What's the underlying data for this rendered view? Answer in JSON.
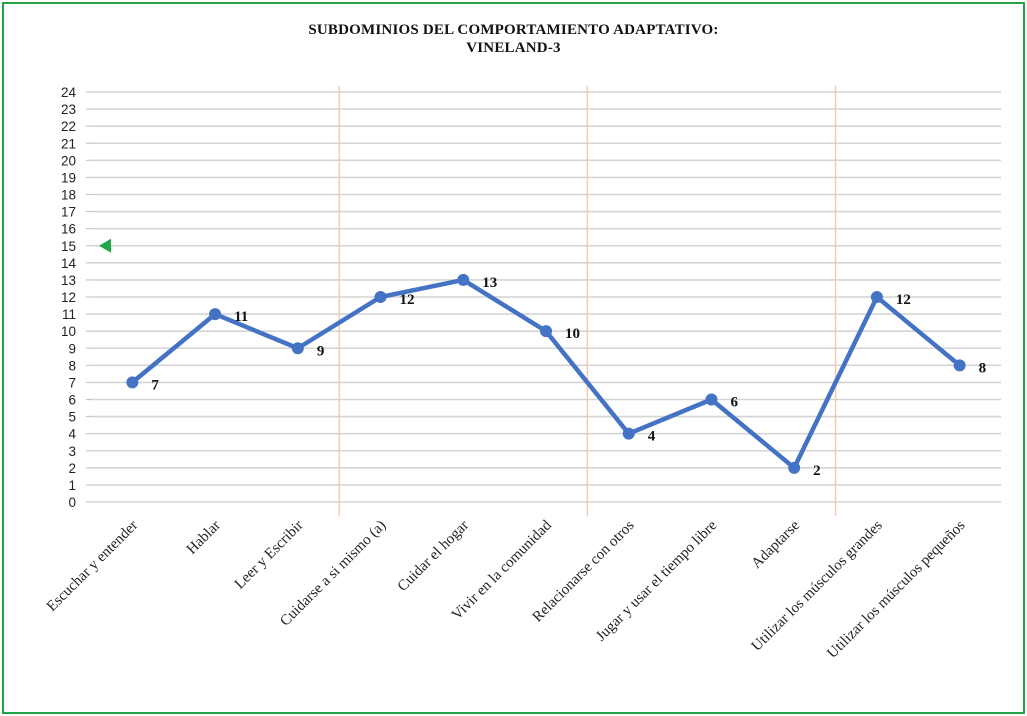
{
  "chart_data": {
    "type": "line",
    "title": "SUBDOMINIOS DEL COMPORTAMIENTO  ADAPTATIVO:",
    "subtitle": "VINELAND-3",
    "xlabel": "",
    "ylabel": "",
    "ylim": [
      0,
      24
    ],
    "yticks": [
      0,
      1,
      2,
      3,
      4,
      5,
      6,
      7,
      8,
      9,
      10,
      11,
      12,
      13,
      14,
      15,
      16,
      17,
      18,
      19,
      20,
      21,
      22,
      23,
      24
    ],
    "categories": [
      "Escuchar y entender",
      "Hablar",
      "Leer y Escribir",
      "Cuidarse a si mismo (a)",
      "Cuidar el hogar",
      "Vivir en la comunidad",
      "Relacionarse con otros",
      "Jugar y usar el tiempo libre",
      "Adaptarse",
      "Utilizar los músculos grandes",
      "Utilizar los músculos pequeños"
    ],
    "series": [
      {
        "values": [
          7,
          11,
          9,
          12,
          13,
          10,
          4,
          6,
          2,
          12,
          8
        ],
        "color": "#4472c4"
      }
    ],
    "data_labels": true,
    "grid": true,
    "group_separators_after_index": [
      2,
      5,
      8
    ],
    "separator_color": "#f6c9a8",
    "marker_y": 15,
    "marker_color": "#22a447",
    "legend": "none"
  },
  "frame_color": "#22a447"
}
